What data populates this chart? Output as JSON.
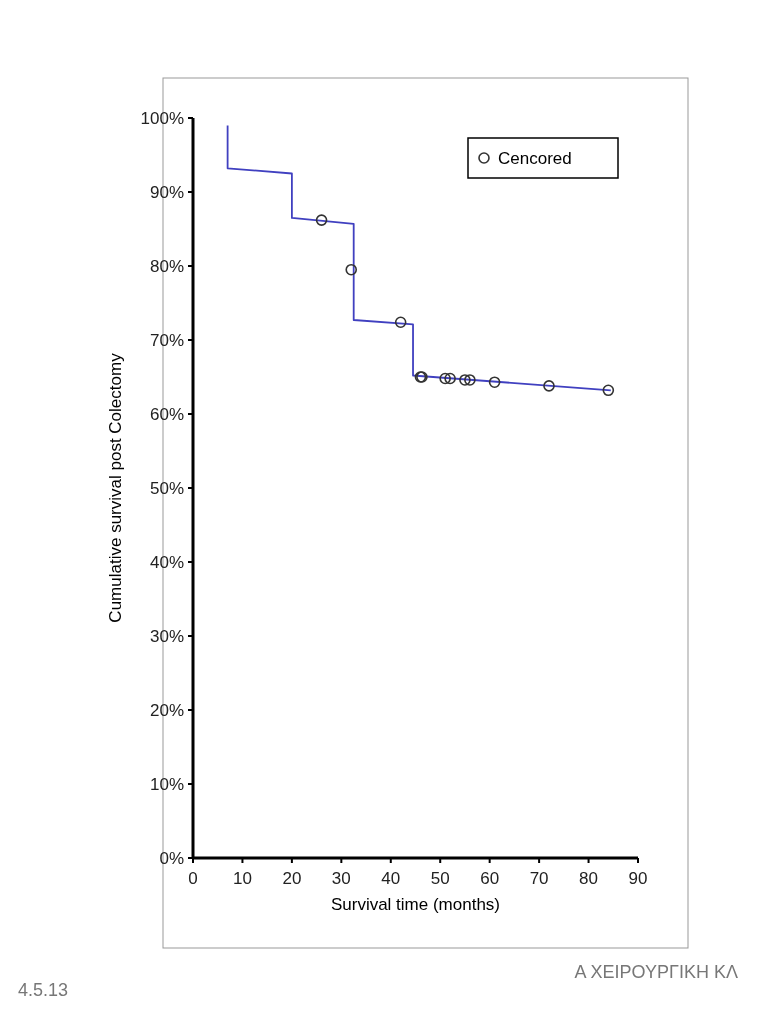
{
  "chart_data": {
    "type": "line",
    "xlabel": "Survival time (months)",
    "ylabel": "Cumulative survival post Colectomy",
    "xlim": [
      0,
      90
    ],
    "xticks": [
      0,
      10,
      20,
      30,
      40,
      50,
      60,
      70,
      80,
      90
    ],
    "ylim": [
      0,
      1
    ],
    "yticks": [
      {
        "value": 0,
        "label": "0%"
      },
      {
        "value": 0.1,
        "label": "10%"
      },
      {
        "value": 0.2,
        "label": "20%"
      },
      {
        "value": 0.3,
        "label": "30%"
      },
      {
        "value": 0.4,
        "label": "40%"
      },
      {
        "value": 0.5,
        "label": "50%"
      },
      {
        "value": 0.6,
        "label": "60%"
      },
      {
        "value": 0.7,
        "label": "70%"
      },
      {
        "value": 0.8,
        "label": "80%"
      },
      {
        "value": 0.9,
        "label": "90%"
      },
      {
        "value": 1,
        "label": "100%"
      }
    ],
    "grid": false,
    "legend": "top right",
    "series": [
      {
        "color": "#4040c0",
        "marker": "none",
        "x": [
          7,
          7,
          20,
          20,
          32.5,
          32.5,
          44.5,
          44.5,
          84.5
        ],
        "values": [
          0.99,
          0.932,
          0.925,
          0.865,
          0.857,
          0.727,
          0.721,
          0.652,
          0.632
        ]
      },
      {
        "type": "scatter",
        "name": "Cencored",
        "color": "#333333",
        "marker": "circle",
        "x": [
          26,
          32,
          42,
          46,
          46.3,
          51,
          52,
          55,
          56,
          61,
          72,
          84
        ],
        "values": [
          0.862,
          0.795,
          0.724,
          0.65,
          0.65,
          0.648,
          0.648,
          0.646,
          0.646,
          0.643,
          0.638,
          0.632
        ]
      }
    ],
    "annotations": [
      "4.5.13",
      "Α ΧΕΙΡΟΥΡΓΙΚΗ ΚΛ"
    ]
  }
}
